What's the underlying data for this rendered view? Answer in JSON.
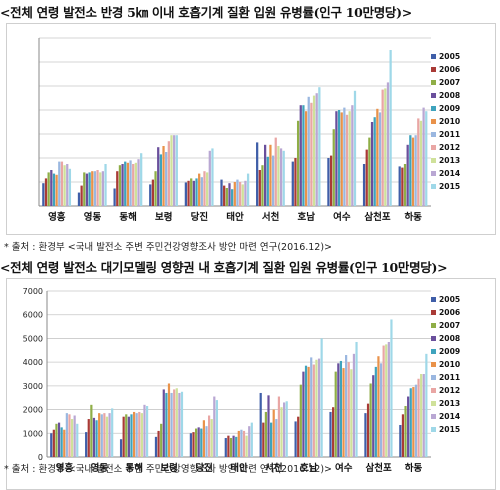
{
  "titles": {
    "chart1": "<전체 연령 발전소 반경 5㎞ 이내 호흡기계 질환 입원 유병률(인구 10만명당)>",
    "chart2": "<전체 연령 발전소 대기모델링 영향권 내 호흡기계 질환 입원 유병률(인구 10만명당)>"
  },
  "sources": {
    "chart1": "* 출처 : 환경부 <국내 발전소 주변 주민건강영향조사 방안 마련 연구(2016.12)>",
    "chart2": "* 출처 : 환경부 <국내 발전소 주변 주민건강영향조사 방안 마련 연구(2016.12)>"
  },
  "series_colors": [
    "#3f5ea8",
    "#a93a36",
    "#8fae47",
    "#6a4f9c",
    "#3ea3bd",
    "#e9924a",
    "#9ab7e0",
    "#e9a6a4",
    "#cfe19a",
    "#b9a7d3",
    "#9fd8e8"
  ],
  "chart_data": [
    {
      "type": "bar",
      "categories": [
        "영흥",
        "영동",
        "동해",
        "보령",
        "당진",
        "태안",
        "서천",
        "호남",
        "여수",
        "삼천포",
        "하동"
      ],
      "ylim": [
        0,
        7000
      ],
      "yticks": [],
      "grid": true,
      "legend_position": "right",
      "series": [
        {
          "name": "2005",
          "values": [
            950,
            560,
            730,
            900,
            980,
            1100,
            2650,
            1850,
            2000,
            1750,
            1650
          ]
        },
        {
          "name": "2006",
          "values": [
            1150,
            850,
            1450,
            1100,
            1050,
            850,
            1500,
            2000,
            2100,
            2350,
            1600
          ]
        },
        {
          "name": "2007",
          "values": [
            1400,
            1400,
            1700,
            1450,
            1150,
            750,
            1700,
            3550,
            3200,
            2850,
            1750
          ]
        },
        {
          "name": "2008",
          "values": [
            1500,
            1350,
            1750,
            2450,
            1050,
            950,
            2550,
            4200,
            3950,
            3500,
            2550
          ]
        },
        {
          "name": "2009",
          "values": [
            1350,
            1400,
            1850,
            2150,
            1150,
            700,
            2050,
            4200,
            4000,
            3700,
            2950
          ]
        },
        {
          "name": "2010",
          "values": [
            1300,
            1450,
            1800,
            2500,
            1350,
            1000,
            2550,
            3950,
            3900,
            4050,
            2850
          ]
        },
        {
          "name": "2011",
          "values": [
            1850,
            1450,
            1900,
            2250,
            1200,
            1100,
            2100,
            4550,
            4100,
            3900,
            2950
          ]
        },
        {
          "name": "2012",
          "values": [
            1850,
            1500,
            1750,
            2700,
            1450,
            1000,
            2850,
            4300,
            3800,
            4850,
            3650
          ]
        },
        {
          "name": "2013",
          "values": [
            1700,
            1400,
            1800,
            2950,
            1400,
            900,
            2500,
            4600,
            3950,
            4900,
            3550
          ]
        },
        {
          "name": "2014",
          "values": [
            1750,
            1450,
            1950,
            2950,
            2300,
            1050,
            2400,
            4700,
            4200,
            5150,
            4100
          ]
        },
        {
          "name": "2015",
          "values": [
            1550,
            1750,
            2200,
            2950,
            2400,
            1350,
            2300,
            4950,
            4800,
            6500,
            3950
          ]
        }
      ]
    },
    {
      "type": "bar",
      "categories": [
        "영흥",
        "영동",
        "동해",
        "보령",
        "당진",
        "태안",
        "서천",
        "호남",
        "여수",
        "삼천포",
        "하동"
      ],
      "ylim": [
        0,
        7000
      ],
      "yticks": [
        "0",
        "1000",
        "2000",
        "3000",
        "4000",
        "5000",
        "6000",
        "7000"
      ],
      "grid": true,
      "legend_position": "right",
      "series": [
        {
          "name": "2005",
          "values": [
            1000,
            1050,
            750,
            850,
            1000,
            800,
            2700,
            1500,
            1900,
            1850,
            1350
          ]
        },
        {
          "name": "2006",
          "values": [
            1150,
            1600,
            1700,
            1100,
            1050,
            900,
            1450,
            1700,
            2100,
            2250,
            1800
          ]
        },
        {
          "name": "2007",
          "values": [
            1400,
            2200,
            1800,
            1400,
            1200,
            800,
            1900,
            3050,
            3600,
            3100,
            2150
          ]
        },
        {
          "name": "2008",
          "values": [
            1450,
            1650,
            1700,
            2850,
            1250,
            900,
            2600,
            3600,
            3950,
            3450,
            2550
          ]
        },
        {
          "name": "2009",
          "values": [
            1250,
            1550,
            1800,
            2700,
            1200,
            850,
            1450,
            3850,
            4050,
            3800,
            2900
          ]
        },
        {
          "name": "2010",
          "values": [
            1150,
            1850,
            1900,
            3100,
            1550,
            1100,
            2000,
            3800,
            3750,
            4250,
            2950
          ]
        },
        {
          "name": "2011",
          "values": [
            1850,
            1800,
            1850,
            2700,
            1300,
            1150,
            1600,
            4200,
            4300,
            3950,
            3050
          ]
        },
        {
          "name": "2012",
          "values": [
            1800,
            1850,
            1900,
            2850,
            1750,
            1100,
            2550,
            3900,
            4000,
            4700,
            3300
          ]
        },
        {
          "name": "2013",
          "values": [
            1600,
            1700,
            1850,
            2900,
            1600,
            900,
            2100,
            4100,
            3700,
            4750,
            3500
          ]
        },
        {
          "name": "2014",
          "values": [
            1750,
            1850,
            2200,
            2700,
            2550,
            1300,
            2300,
            4150,
            4350,
            4850,
            3500
          ]
        },
        {
          "name": "2015",
          "values": [
            1400,
            2050,
            2150,
            2750,
            2400,
            1450,
            2350,
            5000,
            4850,
            5800,
            4350
          ]
        }
      ]
    }
  ]
}
